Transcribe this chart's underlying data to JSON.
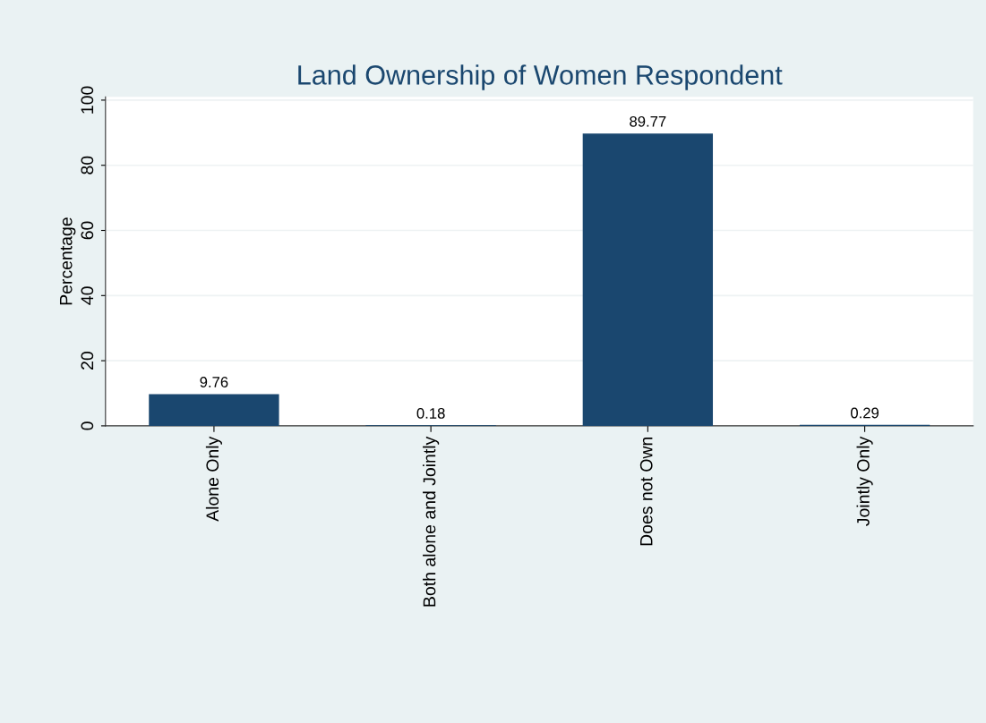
{
  "chart_data": {
    "type": "bar",
    "title": "Land Ownership of Women Respondent",
    "ylabel": "Percentage",
    "categories": [
      "Alone Only",
      "Both alone and Jointly",
      "Does not Own",
      "Jointly Only"
    ],
    "values": [
      9.76,
      0.18,
      89.77,
      0.29
    ],
    "color": "#1a476f",
    "ylim": [
      0,
      101
    ],
    "yticks": [
      0,
      20,
      40,
      60,
      80,
      100
    ],
    "grid": "y",
    "data_labels": true
  }
}
